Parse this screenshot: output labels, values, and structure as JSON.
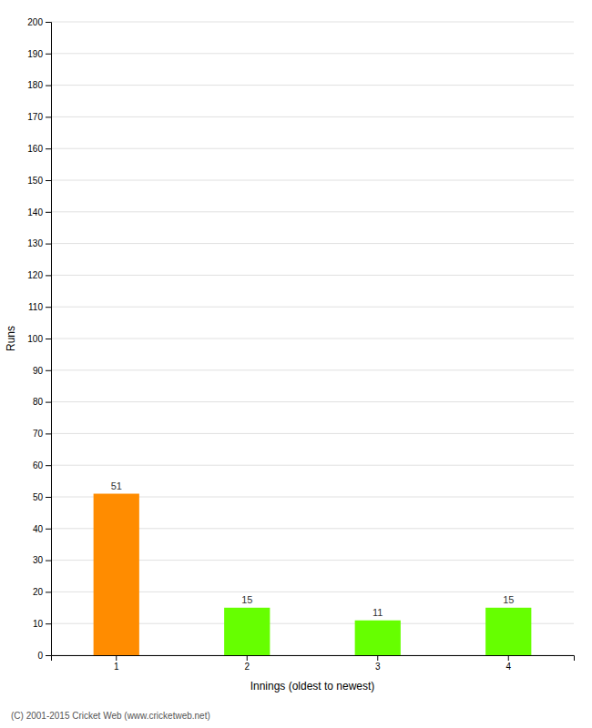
{
  "chart_data": {
    "type": "bar",
    "categories": [
      "1",
      "2",
      "3",
      "4"
    ],
    "values": [
      51,
      15,
      11,
      15
    ],
    "colors": [
      "#ff8c00",
      "#66ff00",
      "#66ff00",
      "#66ff00"
    ],
    "xlabel": "Innings (oldest to newest)",
    "ylabel": "Runs",
    "ylim": [
      0,
      200
    ],
    "yticks": [
      0,
      10,
      20,
      30,
      40,
      50,
      60,
      70,
      80,
      90,
      100,
      110,
      120,
      130,
      140,
      150,
      160,
      170,
      180,
      190,
      200
    ],
    "grid": true,
    "data_labels": true,
    "annotations": [
      "(C) 2001-2015 Cricket Web (www.cricketweb.net)"
    ]
  }
}
